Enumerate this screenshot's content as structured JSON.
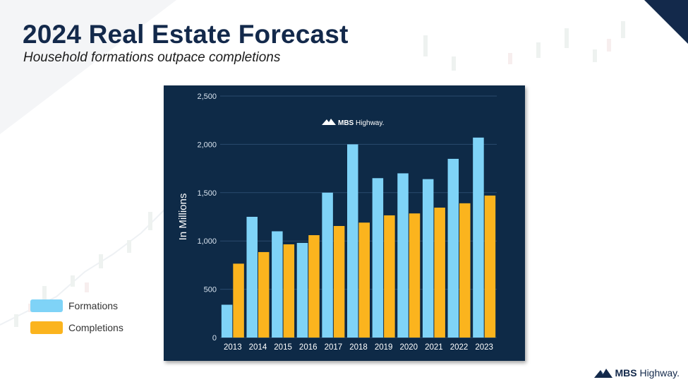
{
  "page": {
    "title": "2024 Real Estate Forecast",
    "subtitle": "Household formations outpace completions"
  },
  "brand": {
    "name_bold": "MBS",
    "name_light": "Highway.",
    "logo_icon": "mountain-logo-icon",
    "navy": "#13294b"
  },
  "legend": {
    "items": [
      {
        "label": "Formations",
        "color": "#7fd3f7"
      },
      {
        "label": "Completions",
        "color": "#fbb41e"
      }
    ]
  },
  "chart_data": {
    "type": "bar",
    "title": "",
    "xlabel": "",
    "ylabel": "In Millions",
    "categories": [
      "2013",
      "2014",
      "2015",
      "2016",
      "2017",
      "2018",
      "2019",
      "2020",
      "2021",
      "2022",
      "2023"
    ],
    "series": [
      {
        "name": "Formations",
        "color": "#7fd3f7",
        "values": [
          340,
          1250,
          1100,
          980,
          1500,
          2000,
          1650,
          1700,
          1640,
          1850,
          2070
        ]
      },
      {
        "name": "Completions",
        "color": "#fbb41e",
        "values": [
          765,
          885,
          965,
          1060,
          1155,
          1190,
          1265,
          1285,
          1345,
          1390,
          1470
        ]
      }
    ],
    "ylim": [
      0,
      2500
    ],
    "yticks": [
      0,
      500,
      1000,
      1500,
      2000,
      2500
    ],
    "ytick_labels": [
      "0",
      "500",
      "1,000",
      "1,500",
      "2,000",
      "2,500"
    ],
    "grid": true,
    "legend_position": "outside-left",
    "background": "#0e2a47",
    "watermark": {
      "bold": "MBS",
      "light": "Highway."
    }
  }
}
